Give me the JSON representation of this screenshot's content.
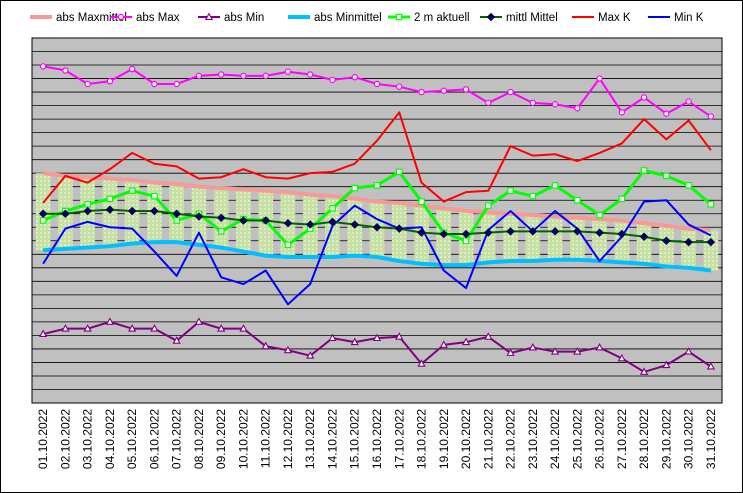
{
  "chart_data": {
    "type": "line",
    "title": "",
    "xlabel": "",
    "ylabel": "",
    "ylim": [
      0,
      27
    ],
    "grid": true,
    "legend_position": "top",
    "categories": [
      "01.10.2022",
      "02.10.2022",
      "03.10.2022",
      "04.10.2022",
      "05.10.2022",
      "06.10.2022",
      "07.10.2022",
      "08.10.2022",
      "09.10.2022",
      "10.10.2022",
      "11.10.2022",
      "12.10.2022",
      "13.10.2022",
      "14.10.2022",
      "15.10.2022",
      "16.10.2022",
      "17.10.2022",
      "18.10.2022",
      "19.10.2022",
      "20.10.2022",
      "21.10.2022",
      "22.10.2022",
      "23.10.2022",
      "24.10.2022",
      "25.10.2022",
      "26.10.2022",
      "27.10.2022",
      "28.10.2022",
      "29.10.2022",
      "30.10.2022",
      "31.10.2022"
    ],
    "band": {
      "upper": [
        17.0,
        16.8,
        16.7,
        16.6,
        16.5,
        16.3,
        16.2,
        16.0,
        15.9,
        15.8,
        15.7,
        15.6,
        15.4,
        15.3,
        15.1,
        14.9,
        14.8,
        14.6,
        14.4,
        14.2,
        14.1,
        14.0,
        13.9,
        13.8,
        13.7,
        13.6,
        13.5,
        13.3,
        13.1,
        12.9,
        12.8
      ],
      "lower": [
        11.3,
        11.4,
        11.5,
        11.6,
        11.8,
        11.9,
        11.9,
        11.7,
        11.5,
        11.2,
        10.9,
        10.8,
        10.8,
        10.8,
        10.9,
        10.8,
        10.5,
        10.3,
        10.2,
        10.2,
        10.4,
        10.5,
        10.5,
        10.6,
        10.6,
        10.5,
        10.4,
        10.3,
        10.1,
        10.0,
        9.8
      ]
    },
    "series": [
      {
        "name": "abs Maxmittel",
        "color": "#f59a96",
        "marker": "none",
        "values": [
          17.0,
          16.8,
          16.7,
          16.6,
          16.5,
          16.3,
          16.2,
          16.0,
          15.9,
          15.8,
          15.7,
          15.6,
          15.4,
          15.3,
          15.1,
          14.9,
          14.8,
          14.6,
          14.4,
          14.2,
          14.1,
          14.0,
          13.9,
          13.8,
          13.7,
          13.6,
          13.5,
          13.3,
          13.1,
          12.9,
          12.8
        ]
      },
      {
        "name": "abs Max",
        "color": "#ff00ff",
        "marker": "circle",
        "values": [
          24.9,
          24.6,
          23.6,
          23.8,
          24.7,
          23.6,
          23.6,
          24.2,
          24.3,
          24.2,
          24.2,
          24.5,
          24.3,
          23.9,
          24.1,
          23.6,
          23.4,
          23.0,
          23.1,
          23.2,
          22.2,
          23.0,
          22.2,
          22.1,
          21.8,
          24.0,
          21.5,
          22.6,
          21.4,
          22.3,
          21.2
        ]
      },
      {
        "name": "abs Min",
        "color": "#800080",
        "marker": "triangle",
        "values": [
          5.1,
          5.5,
          5.5,
          6.0,
          5.5,
          5.5,
          4.6,
          6.0,
          5.5,
          5.5,
          4.2,
          3.9,
          3.5,
          4.8,
          4.5,
          4.8,
          4.9,
          2.9,
          4.3,
          4.5,
          4.9,
          3.7,
          4.1,
          3.8,
          3.8,
          4.1,
          3.3,
          2.3,
          2.8,
          3.8,
          2.7
        ]
      },
      {
        "name": "abs Minmittel",
        "color": "#00bfff",
        "marker": "none",
        "values": [
          11.3,
          11.4,
          11.5,
          11.6,
          11.8,
          11.9,
          11.9,
          11.7,
          11.5,
          11.2,
          10.9,
          10.8,
          10.8,
          10.8,
          10.9,
          10.8,
          10.5,
          10.3,
          10.2,
          10.2,
          10.4,
          10.5,
          10.5,
          10.6,
          10.6,
          10.5,
          10.4,
          10.3,
          10.1,
          10.0,
          9.8
        ]
      },
      {
        "name": "2 m aktuell",
        "color": "#00ff00",
        "marker": "square",
        "values": [
          13.5,
          14.2,
          14.7,
          15.1,
          15.7,
          15.3,
          13.5,
          14.0,
          12.7,
          13.6,
          13.5,
          11.7,
          12.9,
          14.4,
          15.9,
          16.1,
          17.1,
          14.9,
          12.6,
          12.0,
          14.6,
          15.7,
          15.3,
          16.1,
          15.0,
          13.9,
          15.1,
          17.2,
          16.8,
          16.1,
          14.7
        ]
      },
      {
        "name": "mittl Mittel",
        "color": "#006400",
        "marker": "diamond",
        "values": [
          14.0,
          14.0,
          14.2,
          14.3,
          14.2,
          14.2,
          14.0,
          13.8,
          13.7,
          13.5,
          13.5,
          13.3,
          13.2,
          13.4,
          13.2,
          13.0,
          12.9,
          12.6,
          12.5,
          12.5,
          12.6,
          12.7,
          12.7,
          12.7,
          12.7,
          12.6,
          12.5,
          12.3,
          12.0,
          11.9,
          11.9
        ]
      },
      {
        "name": "Max K",
        "color": "#ff0000",
        "marker": "none",
        "values": [
          14.8,
          16.8,
          16.3,
          17.3,
          18.5,
          17.7,
          17.5,
          16.6,
          16.7,
          17.3,
          16.7,
          16.6,
          17.0,
          17.1,
          17.7,
          19.4,
          21.5,
          16.3,
          14.9,
          15.6,
          15.7,
          19.0,
          18.3,
          18.4,
          17.9,
          18.5,
          19.2,
          21.0,
          19.5,
          20.9,
          18.7
        ]
      },
      {
        "name": "Min K",
        "color": "#0000ff",
        "marker": "none",
        "values": [
          10.3,
          12.9,
          13.4,
          13.0,
          12.9,
          11.2,
          9.4,
          12.6,
          9.3,
          8.8,
          9.8,
          7.3,
          8.8,
          13.1,
          14.6,
          13.6,
          12.9,
          13.0,
          9.8,
          8.5,
          12.8,
          14.2,
          12.7,
          14.2,
          12.9,
          10.5,
          12.3,
          14.9,
          15.0,
          13.2,
          12.4
        ]
      }
    ]
  },
  "palette": {
    "plot_bg": "#c0c0c0",
    "grid": "#000000",
    "band_fill": "#c6e0a4",
    "band_dots": "#eef6e0"
  }
}
